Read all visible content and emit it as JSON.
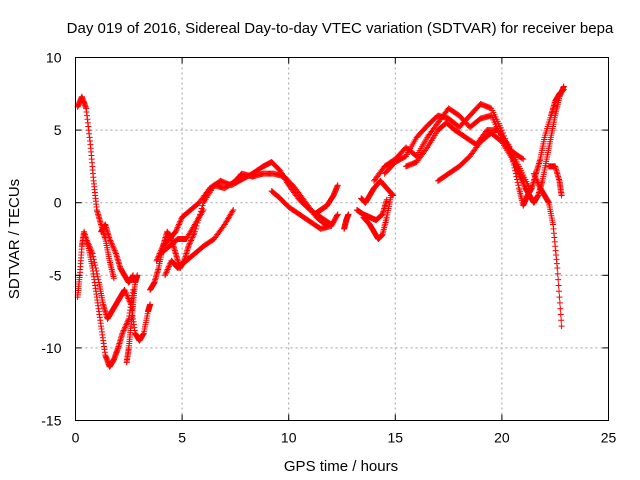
{
  "chart_data": {
    "type": "scatter",
    "title": "Day 019 of 2016, Sidereal Day-to-day VTEC variation (SDTVAR) for receiver bepa",
    "xlabel": "GPS time / hours",
    "ylabel": "SDTVAR / TECUs",
    "xlim": [
      0,
      25
    ],
    "ylim": [
      -15,
      10
    ],
    "xticks": [
      0,
      5,
      10,
      15,
      20,
      25
    ],
    "yticks": [
      -15,
      -10,
      -5,
      0,
      5,
      10
    ],
    "grid": true,
    "marker": "+",
    "series": [
      {
        "name": "bepa",
        "color": "#ff0000",
        "tracks": [
          [
            [
              0.1,
              6.6
            ],
            [
              0.3,
              7.3
            ],
            [
              0.5,
              6.5
            ],
            [
              0.7,
              4.0
            ],
            [
              0.85,
              1.5
            ],
            [
              1.0,
              -0.5
            ],
            [
              1.2,
              -1.5
            ],
            [
              1.4,
              -2.5
            ],
            [
              1.6,
              -4.0
            ],
            [
              1.8,
              -5.2
            ]
          ],
          [
            [
              0.1,
              -6.5
            ],
            [
              0.2,
              -5.0
            ],
            [
              0.3,
              -3.0
            ],
            [
              0.4,
              -2.0
            ],
            [
              0.6,
              -3.0
            ],
            [
              0.8,
              -4.5
            ],
            [
              1.0,
              -6.5
            ],
            [
              1.2,
              -8.5
            ],
            [
              1.4,
              -10.5
            ],
            [
              1.6,
              -11.3
            ],
            [
              1.8,
              -10.8
            ],
            [
              2.0,
              -10.0
            ],
            [
              2.2,
              -9.0
            ],
            [
              2.5,
              -8.0
            ],
            [
              2.7,
              -6.0
            ]
          ],
          [
            [
              0.5,
              -2.5
            ],
            [
              0.8,
              -3.5
            ],
            [
              1.1,
              -5.5
            ],
            [
              1.3,
              -7.0
            ],
            [
              1.5,
              -8.0
            ],
            [
              1.7,
              -7.5
            ],
            [
              1.9,
              -7.0
            ],
            [
              2.1,
              -6.5
            ],
            [
              2.3,
              -6.0
            ],
            [
              2.6,
              -7.0
            ],
            [
              2.8,
              -9.0
            ],
            [
              3.0,
              -9.5
            ],
            [
              3.2,
              -9.0
            ],
            [
              3.4,
              -7.5
            ],
            [
              3.5,
              -7.0
            ]
          ],
          [
            [
              1.2,
              -2.0
            ],
            [
              1.4,
              -1.5
            ],
            [
              1.6,
              -2.5
            ],
            [
              1.9,
              -3.5
            ],
            [
              2.1,
              -4.5
            ],
            [
              2.3,
              -5.0
            ],
            [
              2.5,
              -5.5
            ],
            [
              2.7,
              -5.0
            ]
          ],
          [
            [
              2.4,
              -11.0
            ],
            [
              2.5,
              -10.0
            ],
            [
              2.6,
              -8.5
            ],
            [
              2.7,
              -7.0
            ],
            [
              2.8,
              -5.5
            ],
            [
              2.9,
              -5.0
            ]
          ],
          [
            [
              3.5,
              -6.0
            ],
            [
              3.7,
              -5.5
            ],
            [
              3.9,
              -4.5
            ],
            [
              4.1,
              -3.0
            ],
            [
              4.3,
              -2.0
            ],
            [
              4.5,
              -2.5
            ],
            [
              4.7,
              -3.5
            ],
            [
              4.9,
              -4.5
            ],
            [
              5.1,
              -4.0
            ],
            [
              5.3,
              -3.0
            ],
            [
              5.6,
              -2.0
            ],
            [
              6.0,
              0.0
            ],
            [
              6.5,
              1.2
            ],
            [
              7.0,
              1.0
            ],
            [
              7.5,
              1.5
            ],
            [
              7.8,
              2.0
            ],
            [
              8.3,
              1.8
            ],
            [
              8.8,
              2.0
            ],
            [
              9.3,
              2.0
            ],
            [
              9.8,
              1.8
            ],
            [
              10.3,
              1.0
            ],
            [
              10.8,
              0.0
            ],
            [
              11.3,
              -1.0
            ],
            [
              11.8,
              -1.6
            ]
          ],
          [
            [
              3.8,
              -4.0
            ],
            [
              4.1,
              -3.0
            ],
            [
              4.4,
              -2.5
            ],
            [
              4.7,
              -2.0
            ],
            [
              5.0,
              -1.0
            ],
            [
              5.4,
              -0.5
            ],
            [
              5.8,
              0.0
            ],
            [
              6.3,
              1.0
            ],
            [
              6.8,
              1.5
            ],
            [
              7.3,
              1.2
            ],
            [
              7.8,
              1.6
            ],
            [
              8.3,
              2.0
            ],
            [
              8.8,
              2.5
            ],
            [
              9.2,
              2.8
            ],
            [
              9.6,
              2.2
            ],
            [
              10.0,
              1.2
            ],
            [
              10.5,
              0.2
            ],
            [
              11.0,
              -0.5
            ],
            [
              11.5,
              -1.0
            ],
            [
              12.0,
              -1.5
            ]
          ],
          [
            [
              4.2,
              -5.0
            ],
            [
              4.5,
              -4.0
            ],
            [
              4.8,
              -4.5
            ],
            [
              5.2,
              -4.0
            ],
            [
              5.6,
              -3.5
            ],
            [
              6.0,
              -3.0
            ],
            [
              6.5,
              -2.5
            ],
            [
              7.0,
              -1.5
            ],
            [
              7.4,
              -0.5
            ]
          ],
          [
            [
              4.0,
              -3.5
            ],
            [
              4.4,
              -3.0
            ],
            [
              4.8,
              -2.5
            ],
            [
              5.2,
              -2.5
            ],
            [
              5.6,
              -1.5
            ],
            [
              6.0,
              -0.5
            ]
          ],
          [
            [
              9.2,
              0.8
            ],
            [
              9.6,
              0.3
            ],
            [
              10.0,
              -0.3
            ],
            [
              10.5,
              -0.8
            ],
            [
              11.0,
              -1.3
            ],
            [
              11.5,
              -1.8
            ],
            [
              12.0,
              -1.6
            ],
            [
              12.3,
              -0.8
            ]
          ],
          [
            [
              11.2,
              -0.8
            ],
            [
              11.5,
              -0.5
            ],
            [
              11.8,
              -0.2
            ],
            [
              12.1,
              0.5
            ],
            [
              12.3,
              1.2
            ]
          ],
          [
            [
              12.6,
              -1.8
            ],
            [
              12.7,
              -1.2
            ],
            [
              12.8,
              -0.8
            ]
          ],
          [
            [
              13.2,
              -0.5
            ],
            [
              13.5,
              -0.8
            ],
            [
              13.8,
              -1.0
            ],
            [
              14.1,
              -1.2
            ],
            [
              14.4,
              -0.8
            ],
            [
              14.6,
              0.2
            ]
          ],
          [
            [
              13.5,
              -1.0
            ],
            [
              13.8,
              -1.5
            ],
            [
              14.0,
              -2.0
            ],
            [
              14.2,
              -2.5
            ],
            [
              14.4,
              -2.2
            ],
            [
              14.6,
              -1.0
            ],
            [
              14.8,
              0.5
            ]
          ],
          [
            [
              13.4,
              0.3
            ],
            [
              13.6,
              0.0
            ],
            [
              13.8,
              0.5
            ],
            [
              14.0,
              1.0
            ],
            [
              14.3,
              1.5
            ],
            [
              14.6,
              1.0
            ],
            [
              14.9,
              0.5
            ]
          ],
          [
            [
              14.0,
              1.5
            ],
            [
              14.5,
              2.5
            ],
            [
              15.0,
              3.0
            ],
            [
              15.5,
              3.8
            ],
            [
              16.0,
              3.2
            ],
            [
              16.5,
              4.5
            ],
            [
              17.0,
              5.5
            ],
            [
              17.5,
              6.5
            ],
            [
              18.0,
              6.0
            ],
            [
              18.5,
              5.2
            ],
            [
              19.0,
              5.8
            ],
            [
              19.5,
              6.0
            ],
            [
              20.0,
              4.5
            ],
            [
              20.5,
              3.5
            ],
            [
              21.0,
              3.0
            ]
          ],
          [
            [
              14.5,
              2.0
            ],
            [
              15.0,
              2.8
            ],
            [
              15.5,
              3.2
            ],
            [
              16.0,
              4.5
            ],
            [
              16.5,
              5.3
            ],
            [
              17.0,
              6.0
            ],
            [
              17.5,
              5.8
            ],
            [
              18.0,
              5.2
            ],
            [
              18.5,
              6.0
            ],
            [
              19.0,
              6.8
            ],
            [
              19.5,
              6.5
            ],
            [
              20.0,
              5.0
            ],
            [
              20.5,
              3.0
            ],
            [
              21.0,
              1.5
            ]
          ],
          [
            [
              15.5,
              2.5
            ],
            [
              16.0,
              2.8
            ],
            [
              16.5,
              3.8
            ],
            [
              17.0,
              5.0
            ],
            [
              17.4,
              5.5
            ],
            [
              17.8,
              5.0
            ],
            [
              18.3,
              4.5
            ],
            [
              18.8,
              4.0
            ],
            [
              19.3,
              5.0
            ],
            [
              19.8,
              5.0
            ],
            [
              20.3,
              4.0
            ],
            [
              20.8,
              2.5
            ],
            [
              21.3,
              1.0
            ]
          ],
          [
            [
              17.0,
              1.5
            ],
            [
              17.5,
              2.0
            ],
            [
              18.0,
              2.5
            ],
            [
              18.5,
              3.2
            ],
            [
              19.0,
              4.2
            ],
            [
              19.5,
              4.8
            ],
            [
              20.0,
              4.2
            ],
            [
              20.5,
              3.0
            ],
            [
              20.8,
              2.0
            ],
            [
              21.1,
              1.0
            ],
            [
              21.3,
              0.5
            ],
            [
              21.5,
              0.0
            ],
            [
              21.7,
              0.5
            ],
            [
              21.9,
              1.5
            ],
            [
              22.1,
              3.0
            ],
            [
              22.3,
              4.5
            ],
            [
              22.5,
              6.0
            ],
            [
              22.7,
              7.3
            ],
            [
              22.9,
              8.0
            ]
          ],
          [
            [
              20.5,
              3.0
            ],
            [
              20.8,
              1.0
            ],
            [
              21.0,
              -0.2
            ],
            [
              21.2,
              0.5
            ],
            [
              21.4,
              1.0
            ],
            [
              21.6,
              2.0
            ],
            [
              21.8,
              3.0
            ],
            [
              22.0,
              4.5
            ],
            [
              22.3,
              6.0
            ],
            [
              22.5,
              7.0
            ],
            [
              22.7,
              7.5
            ],
            [
              22.9,
              7.8
            ]
          ],
          [
            [
              21.5,
              2.0
            ],
            [
              21.8,
              1.0
            ],
            [
              22.0,
              0.5
            ],
            [
              22.2,
              0.0
            ],
            [
              22.4,
              -1.5
            ],
            [
              22.6,
              -4.5
            ],
            [
              22.8,
              -8.5
            ]
          ],
          [
            [
              22.2,
              2.5
            ],
            [
              22.5,
              2.5
            ],
            [
              22.7,
              1.5
            ],
            [
              22.8,
              0.5
            ]
          ]
        ]
      }
    ]
  }
}
